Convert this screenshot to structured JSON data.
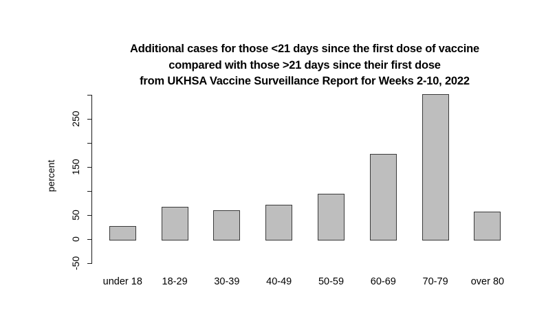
{
  "figure": {
    "background": "#ffffff",
    "text_color": "#000000"
  },
  "chart_data": {
    "type": "bar",
    "title": "Additional cases for those <21 days since the first dose of vaccine compared with those >21 days since their first dose from UKHSA Vaccine Surveillance Report for Weeks 2-10, 2022",
    "title_lines": [
      "Additional cases for those <21 days since the first dose of vaccine",
      "compared with those >21 days since their first dose",
      "from UKHSA Vaccine Surveillance Report for Weeks 2-10, 2022"
    ],
    "categories": [
      "under 18",
      "18-29",
      "30-39",
      "40-49",
      "50-59",
      "60-69",
      "70-79",
      "over 80"
    ],
    "values": [
      25,
      65,
      58,
      70,
      93,
      175,
      300,
      55
    ],
    "xlabel": "",
    "ylabel": "percent",
    "ylim": [
      -50,
      300
    ],
    "yticks": [
      -50,
      0,
      50,
      100,
      150,
      200,
      250,
      300
    ],
    "ytick_labels": [
      "-50",
      "0",
      "50",
      "",
      "150",
      "",
      "250",
      ""
    ],
    "grid": false,
    "legend": "none",
    "bar_fill": "#bebebe",
    "bar_border": "#3a3a3a",
    "axis_color": "#1a1a1a"
  }
}
